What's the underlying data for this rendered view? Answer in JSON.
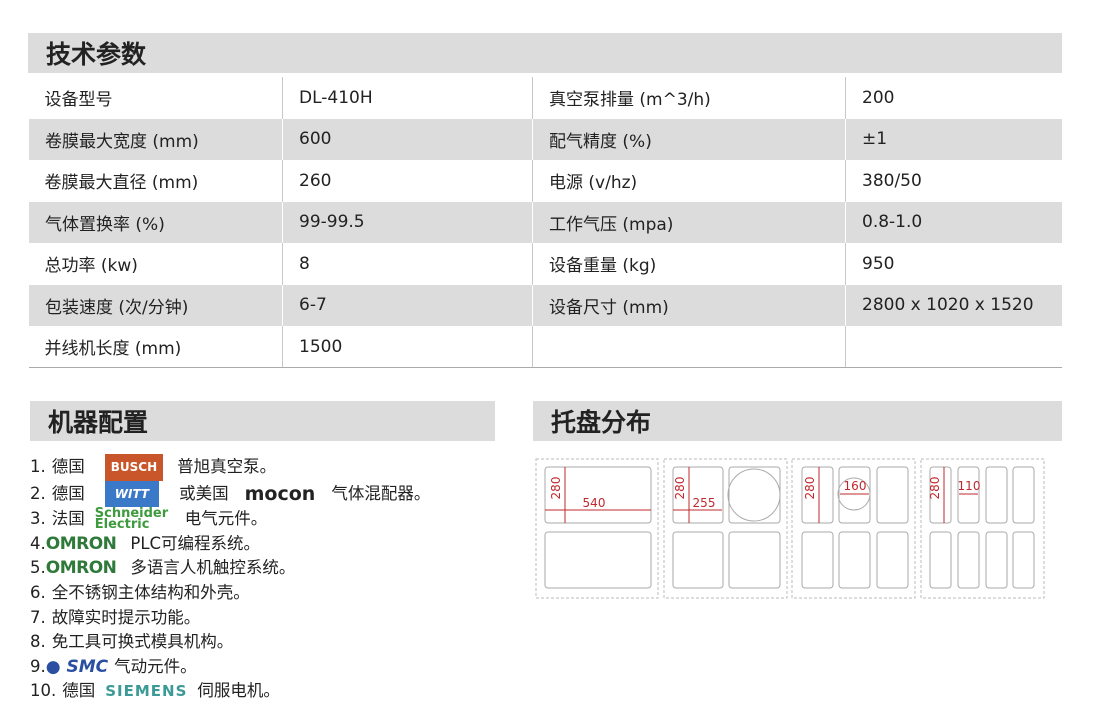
{
  "specs": {
    "title": "技术参数",
    "rows": [
      [
        "设备型号",
        "DL-410H",
        "真空泵排量 (m^3/h)",
        "200"
      ],
      [
        "卷膜最大宽度 (mm)",
        "600",
        "配气精度 (%)",
        "±1"
      ],
      [
        "卷膜最大直径 (mm)",
        "260",
        "电源 (v/hz)",
        "380/50"
      ],
      [
        "气体置换率 (%)",
        "99-99.5",
        "工作气压 (mpa)",
        "0.8-1.0"
      ],
      [
        "总功率 (kw)",
        "8",
        "设备重量 (kg)",
        "950"
      ],
      [
        "包装速度 (次/分钟)",
        "6-7",
        "设备尺寸 (mm)",
        "2800 x 1020 x 1520"
      ],
      [
        "并线机长度 (mm)",
        "1500",
        "",
        ""
      ]
    ]
  },
  "config": {
    "title": "机器配置",
    "items": [
      {
        "num": "1.",
        "pre": "德国",
        "logo": "BUSCH",
        "post": "普旭真空泵。"
      },
      {
        "num": "2.",
        "pre": "德国",
        "logo": "WITT",
        "mid": "或美国",
        "logo2": "mocon",
        "post": "气体混配器。"
      },
      {
        "num": "3.",
        "pre": "法国",
        "logo": "Schneider Electric",
        "post": "电气元件。"
      },
      {
        "num": "4.",
        "logo": "OMRON",
        "post": "PLC可编程系统。"
      },
      {
        "num": "5.",
        "logo": "OMRON",
        "post": "多语言人机触控系统。"
      },
      {
        "num": "6.",
        "post": "全不锈钢主体结构和外壳。"
      },
      {
        "num": "7.",
        "post": "故障实时提示功能。"
      },
      {
        "num": "8.",
        "post": "免工具可换式模具机构。"
      },
      {
        "num": "9.",
        "logo": "SMC",
        "post": "气动元件。"
      },
      {
        "num": "10.",
        "pre": "德国",
        "logo": "SIEMENS",
        "post": "伺服电机。"
      }
    ]
  },
  "tray": {
    "title": "托盘分布",
    "dims": [
      "280",
      "540",
      "280",
      "255",
      "280",
      "160",
      "280",
      "110"
    ],
    "dim_color": "#c0282d"
  }
}
